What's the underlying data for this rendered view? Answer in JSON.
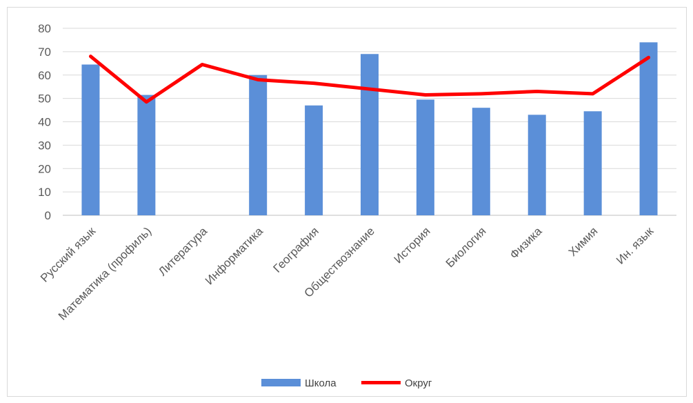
{
  "chart_data": {
    "type": "bar",
    "categories": [
      "Русский язык",
      "Математика (профиль)",
      "Литература",
      "Информатика",
      "География",
      "Обществознание",
      "История",
      "Биология",
      "Физика",
      "Химия",
      "Ин. язык"
    ],
    "series": [
      {
        "name": "Школа",
        "type": "bar",
        "color": "#5B8FD8",
        "values": [
          64.5,
          51.5,
          null,
          60,
          47,
          69,
          49.5,
          46,
          43,
          44.5,
          74
        ]
      },
      {
        "name": "Округ",
        "type": "line",
        "color": "#FF0000",
        "values": [
          68,
          48.5,
          64.5,
          58,
          56.5,
          54,
          51.5,
          52,
          53,
          52,
          67.5
        ]
      }
    ],
    "ylim": [
      0,
      80
    ],
    "yticks": [
      "0",
      "10",
      "20",
      "30",
      "40",
      "50",
      "60",
      "70",
      "80"
    ],
    "grid": true,
    "legend": "bottom",
    "title": "",
    "xlabel": "",
    "ylabel": ""
  }
}
